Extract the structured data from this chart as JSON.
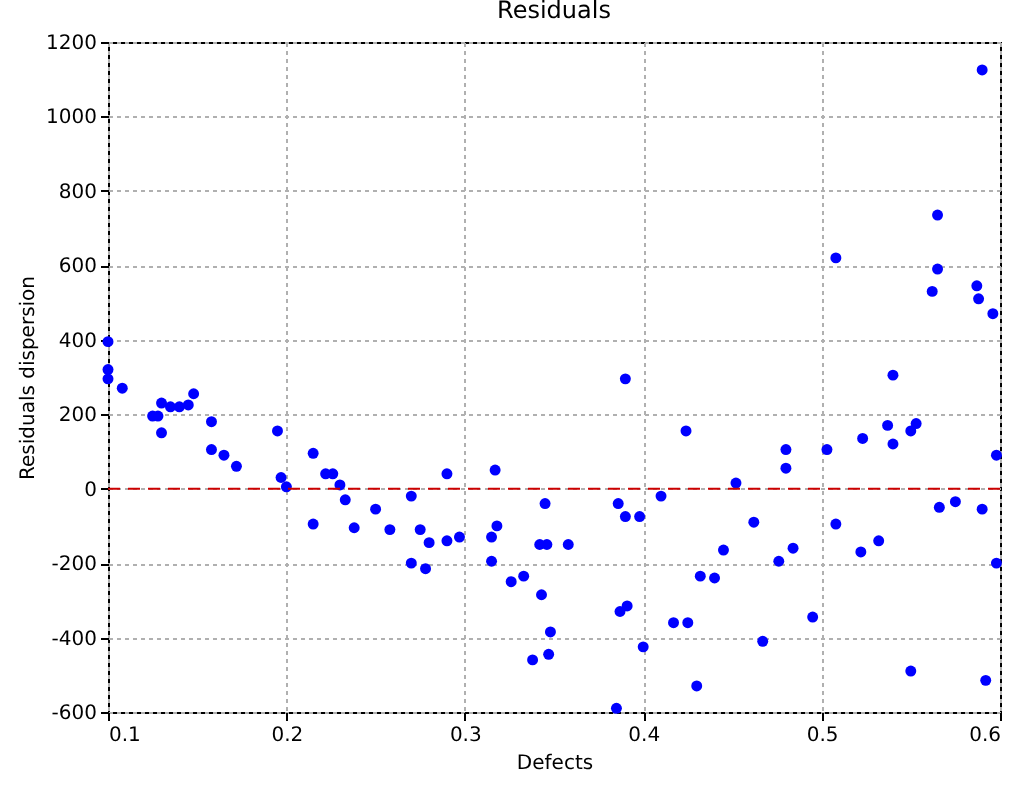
{
  "chart_data": {
    "type": "scatter",
    "title": "Residuals",
    "xlabel": "Defects",
    "ylabel": "Residuals dispersion",
    "xlim": [
      0.1,
      0.6
    ],
    "xticks": [
      0.1,
      0.2,
      0.3,
      0.4,
      0.5,
      0.6
    ],
    "ylim": [
      -600,
      1200
    ],
    "yticks": [
      -600,
      -400,
      -200,
      0,
      200,
      400,
      600,
      800,
      1000,
      1200
    ],
    "grid": true,
    "marker": "circle",
    "ref_lines": [
      {
        "axis": "y",
        "value": 0,
        "color": "#cc0000",
        "line_style": "dashed"
      }
    ],
    "series": [
      {
        "color": "#0000ff",
        "x": [
          0.1,
          0.1,
          0.1,
          0.108,
          0.125,
          0.128,
          0.13,
          0.13,
          0.135,
          0.14,
          0.145,
          0.148,
          0.158,
          0.158,
          0.165,
          0.172,
          0.195,
          0.197,
          0.2,
          0.215,
          0.215,
          0.222,
          0.226,
          0.23,
          0.233,
          0.238,
          0.25,
          0.258,
          0.27,
          0.27,
          0.275,
          0.278,
          0.28,
          0.29,
          0.29,
          0.297,
          0.315,
          0.315,
          0.317,
          0.318,
          0.326,
          0.333,
          0.338,
          0.342,
          0.343,
          0.345,
          0.346,
          0.347,
          0.348,
          0.358,
          0.385,
          0.386,
          0.387,
          0.39,
          0.391,
          0.39,
          0.398,
          0.4,
          0.41,
          0.417,
          0.424,
          0.425,
          0.43,
          0.432,
          0.44,
          0.445,
          0.452,
          0.462,
          0.467,
          0.476,
          0.48,
          0.48,
          0.484,
          0.495,
          0.503,
          0.508,
          0.508,
          0.522,
          0.523,
          0.532,
          0.537,
          0.54,
          0.54,
          0.55,
          0.55,
          0.553,
          0.562,
          0.565,
          0.565,
          0.566,
          0.575,
          0.587,
          0.588,
          0.59,
          0.59,
          0.592,
          0.596,
          0.598,
          0.598
        ],
        "values": [
          395,
          320,
          295,
          270,
          195,
          195,
          230,
          150,
          220,
          220,
          225,
          255,
          180,
          105,
          90,
          60,
          155,
          30,
          5,
          95,
          -95,
          40,
          40,
          10,
          -30,
          -105,
          -55,
          -110,
          -20,
          -200,
          -110,
          -215,
          -145,
          40,
          -140,
          -130,
          -195,
          -130,
          50,
          -100,
          -250,
          -235,
          -460,
          -150,
          -285,
          -40,
          -150,
          -445,
          -385,
          -150,
          -590,
          -40,
          -330,
          295,
          -315,
          -75,
          -75,
          -425,
          -20,
          -360,
          155,
          -360,
          -530,
          -235,
          -240,
          -165,
          15,
          -90,
          -410,
          -195,
          105,
          55,
          -160,
          -345,
          105,
          620,
          -95,
          -170,
          135,
          -140,
          170,
          305,
          120,
          -490,
          155,
          175,
          530,
          590,
          735,
          -50,
          -35,
          545,
          510,
          1125,
          -55,
          -515,
          470,
          90,
          -200
        ]
      }
    ]
  }
}
